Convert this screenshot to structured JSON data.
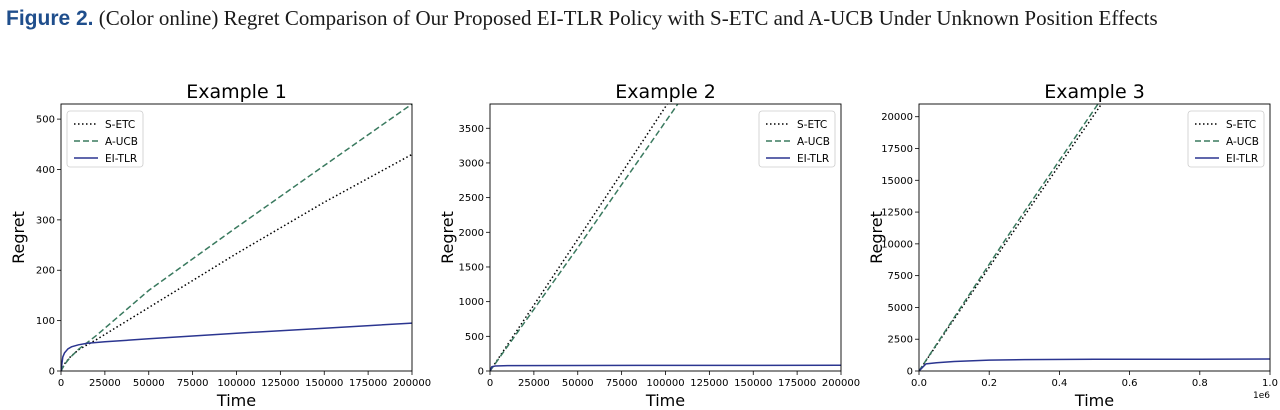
{
  "caption": {
    "label": "Figure 2.",
    "text": "(Color online) Regret Comparison of Our Proposed EI-TLR Policy with S-ETC and A-UCB Under Unknown Position Effects"
  },
  "colors": {
    "S-ETC": "#000000",
    "A-UCB": "#3a7a5f",
    "EI-TLR": "#2b3590",
    "caption_label": "#1f4e8c"
  },
  "chart_data": [
    {
      "type": "line",
      "title": "Example 1",
      "xlabel": "Time",
      "ylabel": "Regret",
      "xlim": [
        0,
        200000
      ],
      "ylim": [
        0,
        530
      ],
      "xticks": [
        0,
        25000,
        50000,
        75000,
        100000,
        125000,
        150000,
        175000,
        200000
      ],
      "xtick_labels": [
        "0",
        "25000",
        "50000",
        "75000",
        "100000",
        "125000",
        "150000",
        "175000",
        "200000"
      ],
      "yticks": [
        0,
        100,
        200,
        300,
        400,
        500
      ],
      "ytick_labels": [
        "0",
        "100",
        "200",
        "300",
        "400",
        "500"
      ],
      "x_multiplier": "",
      "legend_position": "top-left",
      "series": [
        {
          "name": "S-ETC",
          "style": "dotted",
          "x": [
            0,
            2000,
            5000,
            10000,
            20000,
            50000,
            100000,
            150000,
            200000
          ],
          "y": [
            0,
            14,
            27,
            42,
            62,
            126,
            233,
            335,
            430
          ]
        },
        {
          "name": "A-UCB",
          "style": "dashed",
          "x": [
            0,
            2000,
            5000,
            10000,
            20000,
            50000,
            100000,
            150000,
            200000
          ],
          "y": [
            0,
            13,
            26,
            43,
            70,
            160,
            285,
            408,
            530
          ]
        },
        {
          "name": "EI-TLR",
          "style": "solid",
          "x": [
            0,
            1000,
            2000,
            4000,
            6000,
            10000,
            15000,
            25000,
            50000,
            100000,
            150000,
            200000
          ],
          "y": [
            0,
            28,
            36,
            44,
            48,
            52,
            55,
            58,
            64,
            75,
            85,
            95
          ]
        }
      ]
    },
    {
      "type": "line",
      "title": "Example 2",
      "xlabel": "Time",
      "ylabel": "Regret",
      "xlim": [
        0,
        200000
      ],
      "ylim": [
        0,
        3850
      ],
      "xticks": [
        0,
        25000,
        50000,
        75000,
        100000,
        125000,
        150000,
        175000,
        200000
      ],
      "xtick_labels": [
        "0",
        "25000",
        "50000",
        "75000",
        "100000",
        "125000",
        "150000",
        "175000",
        "200000"
      ],
      "yticks": [
        0,
        500,
        1000,
        1500,
        2000,
        2500,
        3000,
        3500
      ],
      "ytick_labels": [
        "0",
        "500",
        "1000",
        "1500",
        "2000",
        "2500",
        "3000",
        "3500"
      ],
      "x_multiplier": "",
      "legend_position": "top-right",
      "series": [
        {
          "name": "S-ETC",
          "style": "dotted",
          "x": [
            0,
            50000,
            101000
          ],
          "y": [
            0,
            1900,
            3850
          ]
        },
        {
          "name": "A-UCB",
          "style": "dashed",
          "x": [
            0,
            50000,
            107000
          ],
          "y": [
            0,
            1780,
            3850
          ]
        },
        {
          "name": "EI-TLR",
          "style": "solid",
          "x": [
            0,
            1000,
            3000,
            10000,
            50000,
            100000,
            200000
          ],
          "y": [
            0,
            60,
            72,
            78,
            80,
            81,
            82
          ]
        }
      ]
    },
    {
      "type": "line",
      "title": "Example 3",
      "xlabel": "Time",
      "ylabel": "Regret",
      "xlim": [
        0,
        1
      ],
      "ylim": [
        0,
        21000
      ],
      "xticks": [
        0,
        0.2,
        0.4,
        0.6,
        0.8,
        1.0
      ],
      "xtick_labels": [
        "0.0",
        "0.2",
        "0.4",
        "0.6",
        "0.8",
        "1.0"
      ],
      "yticks": [
        0,
        2500,
        5000,
        7500,
        10000,
        12500,
        15000,
        17500,
        20000
      ],
      "ytick_labels": [
        "0",
        "2500",
        "5000",
        "7500",
        "10000",
        "12500",
        "15000",
        "17500",
        "20000"
      ],
      "x_multiplier": "1e6",
      "legend_position": "top-right",
      "series": [
        {
          "name": "S-ETC",
          "style": "dotted",
          "x": [
            0,
            0.25,
            0.52
          ],
          "y": [
            0,
            10200,
            21000
          ]
        },
        {
          "name": "A-UCB",
          "style": "dashed",
          "x": [
            0,
            0.25,
            0.51
          ],
          "y": [
            0,
            10500,
            21000
          ]
        },
        {
          "name": "EI-TLR",
          "style": "solid",
          "x": [
            0,
            0.02,
            0.05,
            0.1,
            0.2,
            0.3,
            0.5,
            0.8,
            1.0
          ],
          "y": [
            0,
            560,
            650,
            750,
            860,
            900,
            920,
            930,
            940
          ]
        }
      ]
    }
  ]
}
